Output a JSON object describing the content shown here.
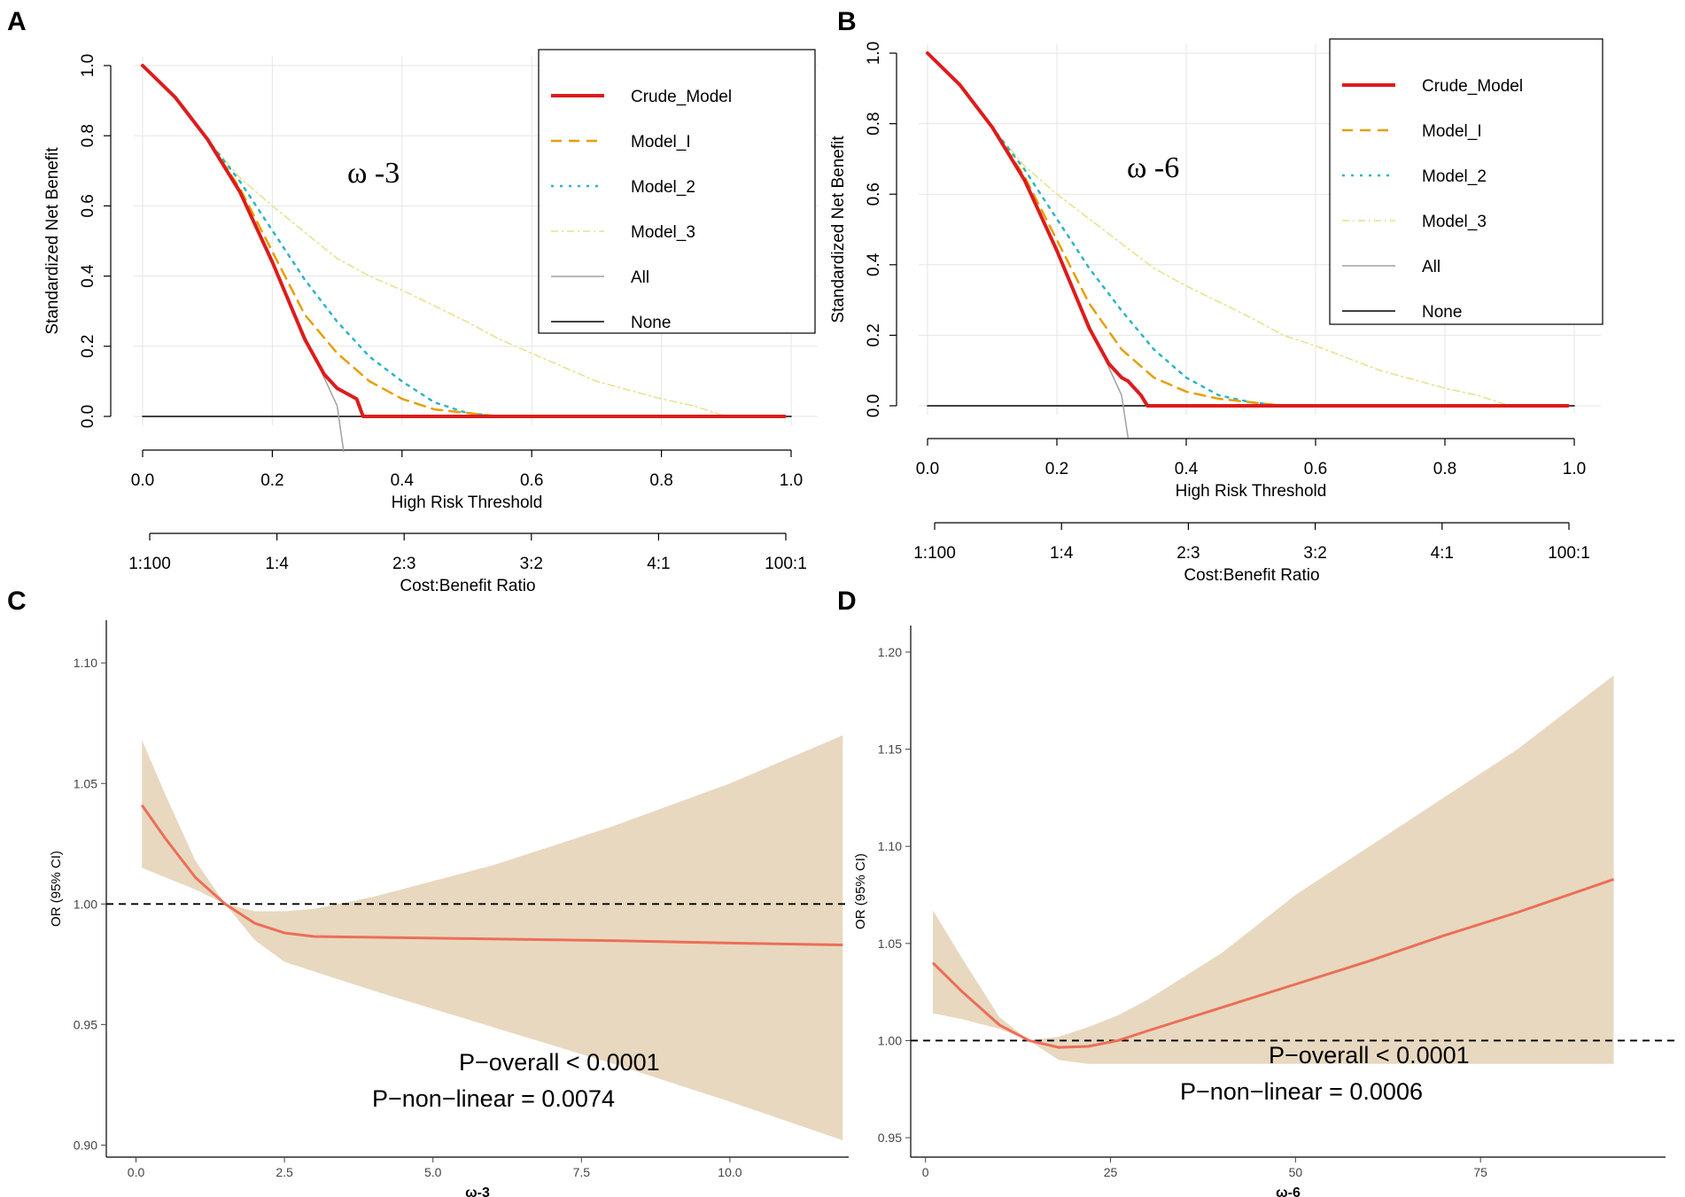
{
  "figure": {
    "panels": [
      "A",
      "B",
      "C",
      "D"
    ]
  },
  "chart_data": [
    {
      "panel": "A",
      "type": "line",
      "title": "ω -3",
      "xlabel": "High Risk Threshold",
      "ylabel": "Standardized Net Benefit",
      "xlim": [
        0,
        1
      ],
      "ylim": [
        0,
        1
      ],
      "x_ticks": [
        "0.0",
        "0.2",
        "0.4",
        "0.6",
        "0.8",
        "1.0"
      ],
      "y_ticks": [
        "0.0",
        "0.2",
        "0.4",
        "0.6",
        "0.8",
        "1.0"
      ],
      "secondary_axis_label": "Cost:Benefit Ratio",
      "secondary_ticks": [
        "1:100",
        "1:4",
        "2:3",
        "3:2",
        "4:1",
        "100:1"
      ],
      "legend": [
        "Crude_Model",
        "Model_I",
        "Model_2",
        "Model_3",
        "All",
        "None"
      ],
      "series": [
        {
          "name": "Crude_Model",
          "color": "#dd1c1c",
          "x": [
            0.0,
            0.05,
            0.1,
            0.15,
            0.2,
            0.25,
            0.28,
            0.3,
            0.31,
            0.32,
            0.33,
            0.34,
            0.4,
            0.6,
            0.8,
            0.99
          ],
          "y": [
            1.0,
            0.91,
            0.79,
            0.64,
            0.44,
            0.22,
            0.12,
            0.08,
            0.07,
            0.06,
            0.05,
            0.0,
            0.0,
            0.0,
            0.0,
            0.0
          ]
        },
        {
          "name": "Model_I",
          "color": "#e69f00",
          "x": [
            0.0,
            0.05,
            0.1,
            0.15,
            0.2,
            0.25,
            0.3,
            0.35,
            0.4,
            0.45,
            0.5,
            0.55,
            0.6,
            0.8,
            0.99
          ],
          "y": [
            1.0,
            0.91,
            0.79,
            0.65,
            0.47,
            0.29,
            0.18,
            0.1,
            0.05,
            0.02,
            0.01,
            0.0,
            0.0,
            0.0,
            0.0
          ]
        },
        {
          "name": "Model_2",
          "color": "#2bb5c8",
          "x": [
            0.0,
            0.05,
            0.1,
            0.15,
            0.2,
            0.25,
            0.3,
            0.35,
            0.4,
            0.45,
            0.5,
            0.55,
            0.6,
            0.8,
            0.99
          ],
          "y": [
            1.0,
            0.91,
            0.79,
            0.67,
            0.53,
            0.39,
            0.27,
            0.17,
            0.1,
            0.04,
            0.01,
            0.0,
            0.0,
            0.0,
            0.0
          ]
        },
        {
          "name": "Model_3",
          "color": "#e7e08c",
          "x": [
            0.0,
            0.05,
            0.1,
            0.15,
            0.2,
            0.3,
            0.35,
            0.4,
            0.5,
            0.55,
            0.6,
            0.7,
            0.8,
            0.85,
            0.9,
            0.99
          ],
          "y": [
            1.0,
            0.91,
            0.79,
            0.68,
            0.6,
            0.45,
            0.4,
            0.36,
            0.27,
            0.22,
            0.18,
            0.1,
            0.05,
            0.03,
            0.0,
            0.0
          ]
        },
        {
          "name": "All",
          "color": "#a0a0a0",
          "x": [
            0.0,
            0.05,
            0.1,
            0.15,
            0.2,
            0.25,
            0.3,
            0.31
          ],
          "y": [
            1.0,
            0.91,
            0.79,
            0.64,
            0.44,
            0.23,
            0.03,
            -0.1
          ]
        },
        {
          "name": "None",
          "color": "#000000",
          "x": [
            0.0,
            1.0
          ],
          "y": [
            0.0,
            0.0
          ]
        }
      ]
    },
    {
      "panel": "B",
      "type": "line",
      "title": "ω -6",
      "xlabel": "High Risk Threshold",
      "ylabel": "Standardized Net Benefit",
      "xlim": [
        0,
        1
      ],
      "ylim": [
        0,
        1
      ],
      "x_ticks": [
        "0.0",
        "0.2",
        "0.4",
        "0.6",
        "0.8",
        "1.0"
      ],
      "y_ticks": [
        "0.0",
        "0.2",
        "0.4",
        "0.6",
        "0.8",
        "1.0"
      ],
      "secondary_axis_label": "Cost:Benefit Ratio",
      "secondary_ticks": [
        "1:100",
        "1:4",
        "2:3",
        "3:2",
        "4:1",
        "100:1"
      ],
      "legend": [
        "Crude_Model",
        "Model_I",
        "Model_2",
        "Model_3",
        "All",
        "None"
      ],
      "series": [
        {
          "name": "Crude_Model",
          "color": "#dd1c1c",
          "x": [
            0.0,
            0.05,
            0.1,
            0.15,
            0.2,
            0.25,
            0.28,
            0.3,
            0.31,
            0.32,
            0.33,
            0.34,
            0.4,
            0.6,
            0.8,
            0.99
          ],
          "y": [
            1.0,
            0.91,
            0.79,
            0.64,
            0.44,
            0.22,
            0.12,
            0.08,
            0.07,
            0.05,
            0.03,
            0.0,
            0.0,
            0.0,
            0.0,
            0.0
          ]
        },
        {
          "name": "Model_I",
          "color": "#e69f00",
          "x": [
            0.0,
            0.05,
            0.1,
            0.15,
            0.2,
            0.25,
            0.3,
            0.35,
            0.4,
            0.45,
            0.5,
            0.55,
            0.6,
            0.8,
            0.99
          ],
          "y": [
            1.0,
            0.91,
            0.79,
            0.65,
            0.47,
            0.29,
            0.16,
            0.08,
            0.04,
            0.02,
            0.01,
            0.0,
            0.0,
            0.0,
            0.0
          ]
        },
        {
          "name": "Model_2",
          "color": "#2bb5c8",
          "x": [
            0.0,
            0.05,
            0.1,
            0.15,
            0.2,
            0.25,
            0.3,
            0.35,
            0.4,
            0.45,
            0.5,
            0.55,
            0.6,
            0.8,
            0.99
          ],
          "y": [
            1.0,
            0.91,
            0.79,
            0.67,
            0.53,
            0.39,
            0.27,
            0.16,
            0.08,
            0.03,
            0.01,
            0.0,
            0.0,
            0.0,
            0.0
          ]
        },
        {
          "name": "Model_3",
          "color": "#e7e08c",
          "x": [
            0.0,
            0.05,
            0.1,
            0.15,
            0.2,
            0.3,
            0.35,
            0.4,
            0.5,
            0.55,
            0.6,
            0.7,
            0.8,
            0.85,
            0.9,
            0.99
          ],
          "y": [
            1.0,
            0.91,
            0.79,
            0.68,
            0.6,
            0.46,
            0.39,
            0.34,
            0.25,
            0.2,
            0.17,
            0.1,
            0.05,
            0.03,
            0.0,
            0.0
          ]
        },
        {
          "name": "All",
          "color": "#a0a0a0",
          "x": [
            0.0,
            0.05,
            0.1,
            0.15,
            0.2,
            0.25,
            0.3,
            0.31
          ],
          "y": [
            1.0,
            0.91,
            0.79,
            0.64,
            0.44,
            0.23,
            0.03,
            -0.09
          ]
        },
        {
          "name": "None",
          "color": "#000000",
          "x": [
            0.0,
            1.0
          ],
          "y": [
            0.0,
            0.0
          ]
        }
      ]
    },
    {
      "panel": "C",
      "type": "line",
      "title": "",
      "xlabel": "ω-3",
      "ylabel": "OR (95% CI)",
      "xlim": [
        -0.5,
        12
      ],
      "ylim": [
        0.895,
        1.11
      ],
      "x_ticks": [
        0.0,
        2.5,
        5.0,
        7.5,
        10.0
      ],
      "x_tick_labels": [
        "0.0",
        "2.5",
        "5.0",
        "7.5",
        "10.0"
      ],
      "y_ticks": [
        0.9,
        0.95,
        1.0,
        1.05,
        1.1
      ],
      "y_tick_labels": [
        "0.90",
        "0.95",
        "1.00",
        "1.05",
        "1.10"
      ],
      "reference_line": 1.0,
      "annotations": [
        "P−overall < 0.0001",
        "P−non−linear = 0.0074"
      ],
      "series": [
        {
          "name": "OR",
          "color": "#ec6e57",
          "x": [
            0.1,
            0.5,
            1.0,
            1.5,
            2.0,
            2.5,
            3.0,
            4.0,
            6.0,
            8.0,
            10.0,
            11.9
          ],
          "y": [
            1.041,
            1.027,
            1.011,
            1.0,
            0.992,
            0.988,
            0.9865,
            0.9862,
            0.9855,
            0.9848,
            0.9838,
            0.983
          ]
        },
        {
          "name": "95% CI lower",
          "color": "#e8d8c0",
          "x": [
            0.1,
            0.5,
            1.0,
            1.5,
            2.0,
            2.5,
            3.0,
            4.0,
            6.0,
            8.0,
            10.0,
            11.9
          ],
          "y": [
            1.015,
            1.011,
            1.006,
            1.0,
            0.985,
            0.976,
            0.972,
            0.964,
            0.949,
            0.934,
            0.918,
            0.902
          ]
        },
        {
          "name": "95% CI upper",
          "color": "#e8d8c0",
          "x": [
            0.1,
            0.5,
            1.0,
            1.5,
            2.0,
            2.5,
            3.0,
            4.0,
            6.0,
            8.0,
            10.0,
            11.9
          ],
          "y": [
            1.068,
            1.045,
            1.018,
            1.0,
            0.997,
            0.997,
            0.998,
            1.003,
            1.016,
            1.032,
            1.05,
            1.07
          ]
        }
      ]
    },
    {
      "panel": "D",
      "type": "line",
      "title": "",
      "xlabel": "ω-6",
      "ylabel": "OR (95% CI)",
      "xlim": [
        -2,
        100
      ],
      "ylim": [
        0.94,
        1.205
      ],
      "x_ticks": [
        0,
        25,
        50,
        75
      ],
      "x_tick_labels": [
        "0",
        "25",
        "50",
        "75"
      ],
      "y_ticks": [
        0.95,
        1.0,
        1.05,
        1.1,
        1.15,
        1.2
      ],
      "y_tick_labels": [
        "0.95",
        "1.00",
        "1.05",
        "1.10",
        "1.15",
        "1.20"
      ],
      "reference_line": 1.0,
      "annotations": [
        "P−overall < 0.0001",
        "P−non−linear = 0.0006"
      ],
      "series": [
        {
          "name": "OR",
          "color": "#ec6e57",
          "x": [
            1,
            5,
            10,
            14,
            18,
            22,
            26,
            30,
            40,
            50,
            60,
            70,
            80,
            93
          ],
          "y": [
            1.04,
            1.025,
            1.008,
            1.0,
            0.9965,
            0.997,
            1.0,
            1.005,
            1.017,
            1.029,
            1.041,
            1.054,
            1.066,
            1.083
          ]
        },
        {
          "name": "95% CI lower",
          "color": "#e8d8c0",
          "x": [
            1,
            5,
            10,
            14,
            18,
            22,
            26,
            30,
            40,
            50,
            60,
            70,
            80,
            93
          ],
          "y": [
            1.014,
            1.011,
            1.006,
            1.0,
            0.99,
            0.988,
            0.988,
            0.988,
            0.988,
            0.988,
            0.988,
            0.988,
            0.988,
            0.988
          ]
        },
        {
          "name": "95% CI upper",
          "color": "#e8d8c0",
          "x": [
            1,
            5,
            10,
            14,
            18,
            22,
            26,
            30,
            40,
            50,
            60,
            70,
            80,
            93
          ],
          "y": [
            1.067,
            1.042,
            1.012,
            1.0,
            1.002,
            1.007,
            1.013,
            1.021,
            1.045,
            1.075,
            1.1,
            1.125,
            1.15,
            1.188
          ]
        }
      ]
    }
  ]
}
